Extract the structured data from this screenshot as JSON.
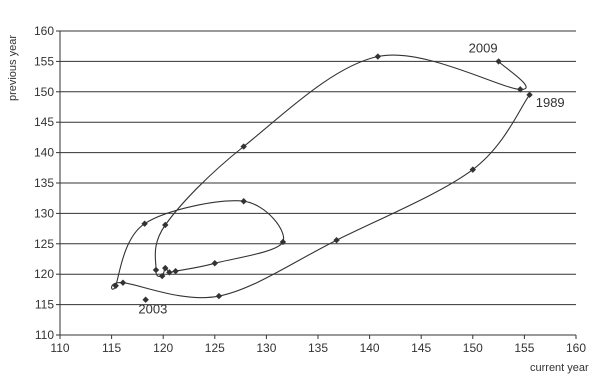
{
  "chart_data": {
    "type": "scatter",
    "connected": true,
    "smooth": true,
    "title": "",
    "xlabel": "current year",
    "ylabel": "previous year",
    "xlim": [
      110,
      160
    ],
    "ylim": [
      110,
      160
    ],
    "grid": "horizontal",
    "x_ticks": [
      110,
      115,
      120,
      125,
      130,
      135,
      140,
      145,
      150,
      155,
      160
    ],
    "y_ticks": [
      110,
      115,
      120,
      125,
      130,
      135,
      140,
      145,
      150,
      155,
      160
    ],
    "series": [
      {
        "points": [
          {
            "x": 155.5,
            "y": 149.5
          },
          {
            "x": 150.0,
            "y": 137.2
          },
          {
            "x": 136.8,
            "y": 125.6
          },
          {
            "x": 125.4,
            "y": 116.4
          },
          {
            "x": 116.1,
            "y": 118.6
          },
          {
            "x": 115.4,
            "y": 118.1
          },
          {
            "x": 118.2,
            "y": 128.3
          },
          {
            "x": 127.8,
            "y": 132.0
          },
          {
            "x": 131.6,
            "y": 125.3
          },
          {
            "x": 125.0,
            "y": 121.8
          },
          {
            "x": 121.2,
            "y": 120.5
          },
          {
            "x": 120.6,
            "y": 120.3
          },
          {
            "x": 120.2,
            "y": 121.0
          },
          {
            "x": 119.9,
            "y": 119.7
          },
          {
            "x": 119.3,
            "y": 120.7
          },
          {
            "x": 120.2,
            "y": 128.1
          },
          {
            "x": 127.8,
            "y": 141.0
          },
          {
            "x": 140.8,
            "y": 155.8
          },
          {
            "x": 154.6,
            "y": 150.4
          },
          {
            "x": 152.5,
            "y": 155.0
          },
          {
            "x": 118.3,
            "y": 115.8
          }
        ],
        "order": [
          0,
          1,
          2,
          3,
          4,
          5,
          6,
          7,
          8,
          9,
          10,
          11,
          12,
          13,
          14,
          15,
          16,
          17,
          18,
          19
        ],
        "color": "#333333"
      }
    ],
    "annotations": [
      {
        "text": "2009",
        "x": 151.0,
        "y": 156.5
      },
      {
        "text": "1989",
        "x": 157.5,
        "y": 147.5
      },
      {
        "text": "2003",
        "x": 119.0,
        "y": 113.5
      }
    ]
  }
}
